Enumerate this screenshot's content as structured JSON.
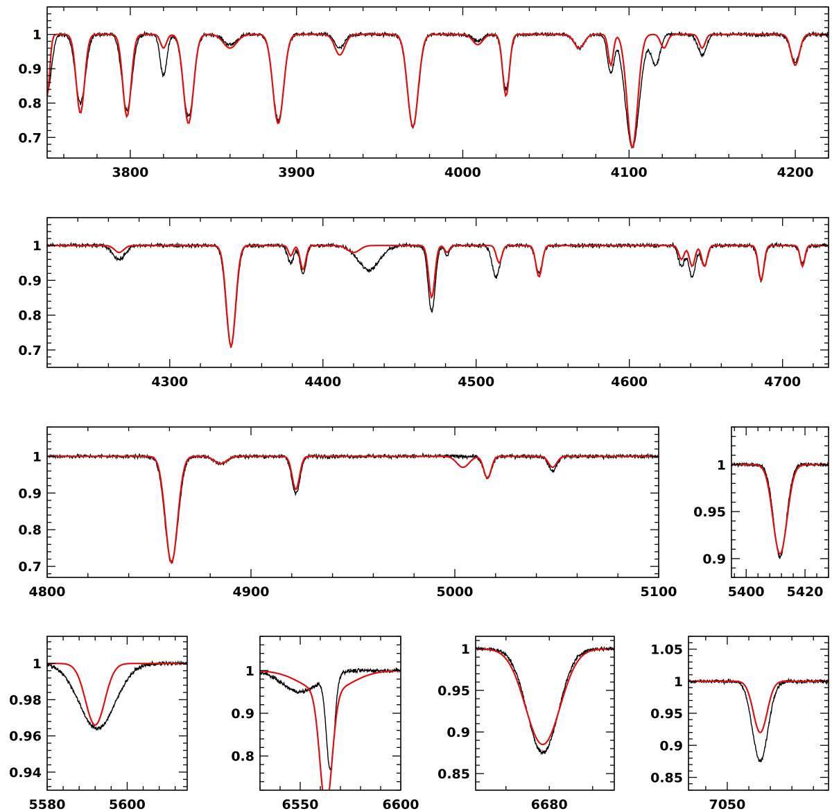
{
  "colors": {
    "observed": "#000000",
    "model": "#e01010",
    "axes": "#000000"
  },
  "chart_data": [
    {
      "type": "line",
      "name": "panel-3750-4220",
      "xlim": [
        3750,
        4220
      ],
      "ylim": [
        0.64,
        1.08
      ],
      "xticks": [
        3800,
        3900,
        4000,
        4100,
        4200
      ],
      "xtick_labels": [
        "3800",
        "3900",
        "4000",
        "4100",
        "4200"
      ],
      "yticks": [
        0.7,
        0.8,
        0.9,
        1.0
      ],
      "ytick_labels": [
        "0.7",
        "0.8",
        "0.9",
        "1"
      ],
      "continuum": 1.0,
      "lines_model": [
        [
          3750,
          0.18,
          1.5
        ],
        [
          3770,
          0.23,
          2.5
        ],
        [
          3798,
          0.24,
          2.5
        ],
        [
          3820,
          0.04,
          1.8
        ],
        [
          3835,
          0.26,
          3.0
        ],
        [
          3860,
          0.04,
          4.0
        ],
        [
          3889,
          0.26,
          3.2
        ],
        [
          3926,
          0.06,
          3.0
        ],
        [
          3970,
          0.27,
          3.2
        ],
        [
          4009,
          0.03,
          3.0
        ],
        [
          4026,
          0.18,
          2.0
        ],
        [
          4070,
          0.04,
          3.0
        ],
        [
          4089,
          0.09,
          1.5
        ],
        [
          4102,
          0.33,
          3.2
        ],
        [
          4121,
          0.04,
          2.0
        ],
        [
          4144,
          0.04,
          1.8
        ],
        [
          4200,
          0.09,
          2.5
        ]
      ],
      "lines_observed": [
        [
          3750,
          0.17,
          2.5
        ],
        [
          3770,
          0.2,
          3.0
        ],
        [
          3798,
          0.22,
          3.0
        ],
        [
          3820,
          0.12,
          2.0
        ],
        [
          3835,
          0.24,
          3.2
        ],
        [
          3860,
          0.03,
          4.0
        ],
        [
          3889,
          0.25,
          3.3
        ],
        [
          3926,
          0.04,
          3.0
        ],
        [
          3970,
          0.27,
          3.3
        ],
        [
          4009,
          0.02,
          3.0
        ],
        [
          4026,
          0.16,
          2.2
        ],
        [
          4070,
          0.04,
          3.0
        ],
        [
          4089,
          0.11,
          2.0
        ],
        [
          4102,
          0.33,
          4.2
        ],
        [
          4116,
          0.09,
          2.6
        ],
        [
          4144,
          0.06,
          2.5
        ],
        [
          4200,
          0.08,
          2.8
        ]
      ]
    },
    {
      "type": "line",
      "name": "panel-4220-4730",
      "xlim": [
        4220,
        4730
      ],
      "ylim": [
        0.65,
        1.08
      ],
      "xticks": [
        4300,
        4400,
        4500,
        4600,
        4700
      ],
      "xtick_labels": [
        "4300",
        "4400",
        "4500",
        "4600",
        "4700"
      ],
      "yticks": [
        0.7,
        0.8,
        0.9,
        1.0
      ],
      "ytick_labels": [
        "0.7",
        "0.8",
        "0.9",
        "1"
      ],
      "continuum": 1.0,
      "lines_model": [
        [
          4267,
          0.02,
          3.0
        ],
        [
          4340,
          0.29,
          3.0
        ],
        [
          4379,
          0.03,
          1.5
        ],
        [
          4387,
          0.07,
          1.8
        ],
        [
          4420,
          0.02,
          4.0
        ],
        [
          4471,
          0.15,
          2.0
        ],
        [
          4481,
          0.02,
          1.5
        ],
        [
          4515,
          0.05,
          1.8
        ],
        [
          4541,
          0.09,
          2.0
        ],
        [
          4634,
          0.04,
          1.8
        ],
        [
          4641,
          0.06,
          1.8
        ],
        [
          4649,
          0.06,
          1.8
        ],
        [
          4686,
          0.1,
          1.8
        ],
        [
          4713,
          0.06,
          1.5
        ]
      ],
      "lines_observed": [
        [
          4267,
          0.04,
          4.0
        ],
        [
          4340,
          0.29,
          3.2
        ],
        [
          4379,
          0.05,
          2.0
        ],
        [
          4387,
          0.08,
          2.0
        ],
        [
          4430,
          0.07,
          7.0
        ],
        [
          4471,
          0.19,
          2.3
        ],
        [
          4481,
          0.03,
          1.5
        ],
        [
          4513,
          0.09,
          2.5
        ],
        [
          4541,
          0.08,
          2.2
        ],
        [
          4634,
          0.06,
          2.0
        ],
        [
          4641,
          0.09,
          2.2
        ],
        [
          4649,
          0.06,
          2.0
        ],
        [
          4686,
          0.1,
          2.0
        ],
        [
          4713,
          0.05,
          1.8
        ]
      ]
    },
    {
      "type": "line",
      "name": "panel-4800-5100",
      "xlim": [
        4800,
        5100
      ],
      "ylim": [
        0.67,
        1.08
      ],
      "xticks": [
        4800,
        4900,
        5000,
        5100
      ],
      "xtick_labels": [
        "4800",
        "4900",
        "5000",
        "5100"
      ],
      "yticks": [
        0.7,
        0.8,
        0.9,
        1.0
      ],
      "ytick_labels": [
        "0.7",
        "0.8",
        "0.9",
        "1"
      ],
      "continuum": 1.0,
      "lines_model": [
        [
          4861,
          0.29,
          3.0
        ],
        [
          4885,
          0.02,
          3.0
        ],
        [
          4922,
          0.09,
          1.8
        ],
        [
          5004,
          0.03,
          3.0
        ],
        [
          5016,
          0.06,
          1.8
        ],
        [
          5048,
          0.03,
          2.0
        ]
      ],
      "lines_observed": [
        [
          4861,
          0.29,
          3.2
        ],
        [
          4885,
          0.02,
          3.0
        ],
        [
          4922,
          0.1,
          2.0
        ],
        [
          5016,
          0.06,
          2.0
        ],
        [
          5048,
          0.04,
          2.0
        ]
      ]
    },
    {
      "type": "line",
      "name": "panel-5395-5430",
      "xlim": [
        5395,
        5428
      ],
      "ylim": [
        0.88,
        1.04
      ],
      "xticks": [
        5400,
        5420
      ],
      "xtick_labels": [
        "5400",
        "5420"
      ],
      "yticks": [
        0.9,
        0.95,
        1.0
      ],
      "ytick_labels": [
        "0.9",
        "0.95",
        "1"
      ],
      "continuum": 1.0,
      "lines_model": [
        [
          5411.5,
          0.095,
          2.4
        ]
      ],
      "lines_observed": [
        [
          5411.5,
          0.098,
          2.2
        ]
      ]
    },
    {
      "type": "line",
      "name": "panel-5580-5615",
      "xlim": [
        5580,
        5615
      ],
      "ylim": [
        0.93,
        1.015
      ],
      "xticks": [
        5580,
        5600
      ],
      "xtick_labels": [
        "5580",
        "5600"
      ],
      "yticks": [
        0.94,
        0.96,
        0.98,
        1.0
      ],
      "ytick_labels": [
        "0.94",
        "0.96",
        "0.98",
        "1"
      ],
      "continuum": 1.0,
      "lines_model": [
        [
          5592,
          0.034,
          2.4
        ]
      ],
      "lines_observed": [
        [
          5592.5,
          0.036,
          4.5
        ]
      ]
    },
    {
      "type": "line",
      "name": "panel-6530-6600",
      "xlim": [
        6530,
        6600
      ],
      "ylim": [
        0.72,
        1.08
      ],
      "xticks": [
        6550,
        6600
      ],
      "xtick_labels": [
        "6550",
        "6600"
      ],
      "yticks": [
        0.8,
        0.9,
        1.0
      ],
      "ytick_labels": [
        "0.8",
        "0.9",
        "1"
      ],
      "continuum": 1.0,
      "lines_model": [
        [
          6562.8,
          0.27,
          3.0
        ],
        [
          6562.8,
          0.05,
          12.0
        ]
      ],
      "lines_observed": [
        [
          6565,
          0.22,
          2.0
        ],
        [
          6550,
          0.05,
          9.0
        ]
      ]
    },
    {
      "type": "line",
      "name": "panel-6663-6695",
      "xlim": [
        6663,
        6695
      ],
      "ylim": [
        0.83,
        1.015
      ],
      "xticks": [
        6680
      ],
      "xtick_labels": [
        "6680"
      ],
      "yticks": [
        0.85,
        0.9,
        0.95,
        1.0
      ],
      "ytick_labels": [
        "0.85",
        "0.9",
        "0.95",
        "1"
      ],
      "continuum": 1.0,
      "lines_model": [
        [
          6678.5,
          0.115,
          4.0
        ]
      ],
      "lines_observed": [
        [
          6678.5,
          0.125,
          3.6
        ]
      ]
    },
    {
      "type": "line",
      "name": "panel-7035-7100",
      "xlim": [
        7032,
        7097
      ],
      "ylim": [
        0.83,
        1.07
      ],
      "xticks": [
        7050
      ],
      "xtick_labels": [
        "7050"
      ],
      "yticks": [
        0.85,
        0.9,
        0.95,
        1.0,
        1.05
      ],
      "ytick_labels": [
        "0.85",
        "0.9",
        "0.95",
        "1",
        "1.05"
      ],
      "continuum": 1.0,
      "lines_model": [
        [
          7065.3,
          0.08,
          3.2
        ]
      ],
      "lines_observed": [
        [
          7065.3,
          0.125,
          3.6
        ]
      ]
    }
  ]
}
